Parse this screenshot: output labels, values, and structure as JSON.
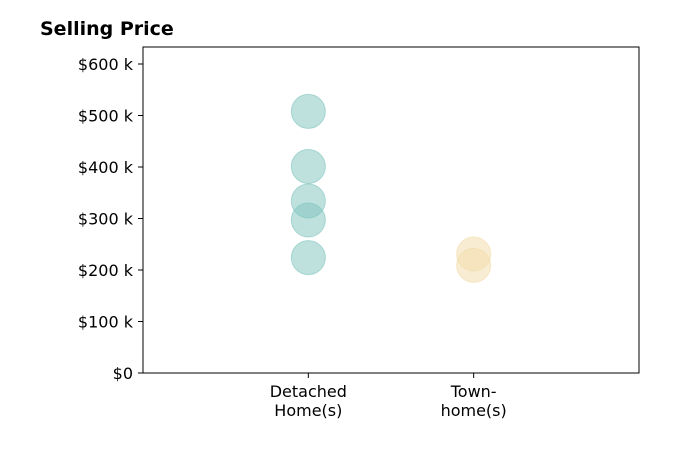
{
  "chart_data": {
    "type": "scatter",
    "title": "Selling Price",
    "xlabel": "",
    "ylabel": "",
    "categories": [
      [
        "Detached",
        "Home(s)"
      ],
      [
        "Town-",
        "home(s)"
      ]
    ],
    "x_range": [
      -1,
      2
    ],
    "ylim": [
      0,
      633000
    ],
    "yticks": [
      {
        "value": 0,
        "label": "$0"
      },
      {
        "value": 100000,
        "label": "$100 k"
      },
      {
        "value": 200000,
        "label": "$200 k"
      },
      {
        "value": 300000,
        "label": "$300 k"
      },
      {
        "value": 400000,
        "label": "$400 k"
      },
      {
        "value": 500000,
        "label": "$500 k"
      },
      {
        "value": 600000,
        "label": "$600 k"
      }
    ],
    "grid": false,
    "legend": "none",
    "series": [
      {
        "category_index": 0,
        "color": "#7fc4bd",
        "values": [
          508000,
          401000,
          334000,
          297000,
          224000
        ]
      },
      {
        "category_index": 1,
        "color": "#f2dba7",
        "values": [
          231000,
          209000
        ]
      }
    ]
  }
}
